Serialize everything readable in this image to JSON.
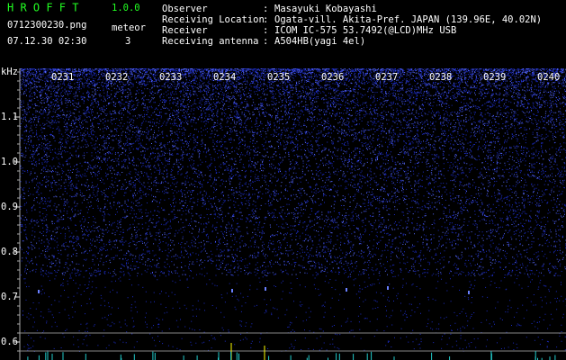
{
  "header": {
    "app_name": "H R O F F T",
    "version": "1.0.0",
    "file_name": "0712300230.png",
    "meteor_label": "meteor",
    "datetime": "07.12.30 02:30",
    "meteor_count": "3"
  },
  "info": {
    "separator": ":",
    "rows": [
      {
        "label": "Observer",
        "value": "Masayuki Kobayashi"
      },
      {
        "label": "Receiving Location",
        "value": "Ogata-vill. Akita-Pref. JAPAN (139.96E, 40.02N)"
      },
      {
        "label": "Receiver",
        "value": "ICOM IC-575 53.7492(@LCD)MHz USB"
      },
      {
        "label": "Receiving antenna",
        "value": "A504HB(yagi 4el)"
      }
    ]
  },
  "plot": {
    "unit": "kHz",
    "freq_labels": [
      "1.1",
      "1.0",
      "0.9",
      "0.8",
      "0.7",
      "0.6"
    ],
    "time_labels": [
      "0231",
      "0232",
      "0233",
      "0234",
      "0235",
      "0236",
      "0237",
      "0238",
      "0239",
      "0240"
    ]
  }
}
